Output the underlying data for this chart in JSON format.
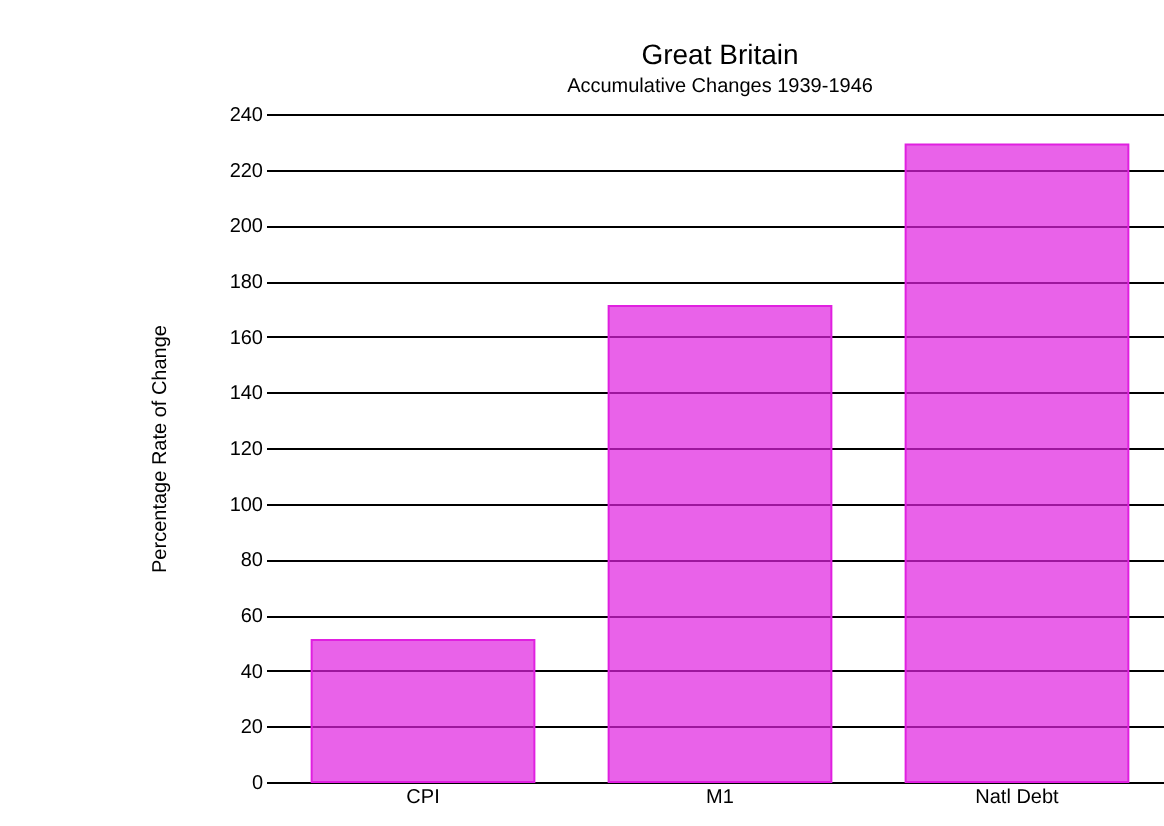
{
  "chart_data": {
    "type": "bar",
    "title": "Great Britain",
    "subtitle": "Accumulative Changes 1939-1946",
    "ylabel": "Percentage Rate of Change",
    "categories": [
      "CPI",
      "M1",
      "Natl Debt"
    ],
    "values": [
      51,
      171,
      229
    ],
    "color": "#e020e0",
    "ylim": [
      0,
      240
    ],
    "yticks": [
      0,
      20,
      40,
      60,
      80,
      100,
      120,
      140,
      160,
      180,
      200,
      220,
      240
    ],
    "grid": "y"
  }
}
